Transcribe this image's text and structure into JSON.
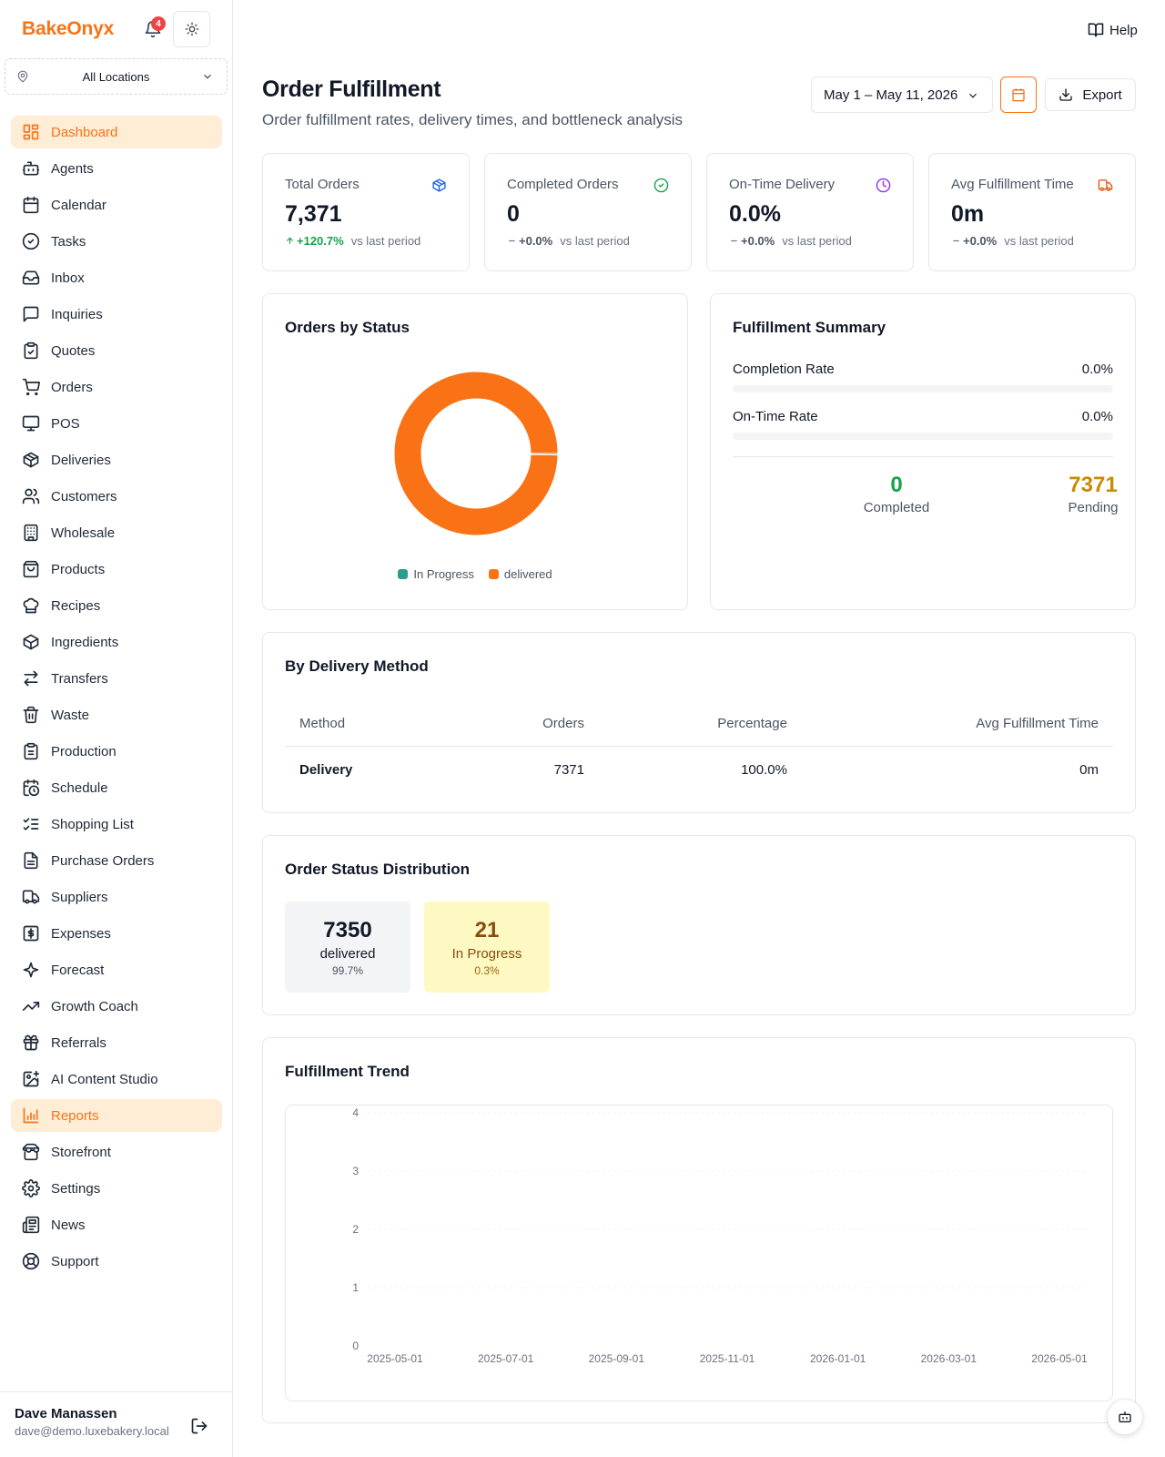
{
  "app": {
    "brand": "BakeOnyx",
    "notification_count": "4",
    "location": "All Locations",
    "help": "Help"
  },
  "sidebar": {
    "items": [
      {
        "label": "Dashboard",
        "icon": "dashboard-icon",
        "active": true
      },
      {
        "label": "Agents",
        "icon": "bot-icon"
      },
      {
        "label": "Calendar",
        "icon": "calendar-icon"
      },
      {
        "label": "Tasks",
        "icon": "check-circle-icon"
      },
      {
        "label": "Inbox",
        "icon": "inbox-icon"
      },
      {
        "label": "Inquiries",
        "icon": "message-icon"
      },
      {
        "label": "Quotes",
        "icon": "clipboard-check-icon"
      },
      {
        "label": "Orders",
        "icon": "cart-icon"
      },
      {
        "label": "POS",
        "icon": "monitor-icon"
      },
      {
        "label": "Deliveries",
        "icon": "package-icon"
      },
      {
        "label": "Customers",
        "icon": "users-icon"
      },
      {
        "label": "Wholesale",
        "icon": "building-icon"
      },
      {
        "label": "Products",
        "icon": "shopping-bag-icon"
      },
      {
        "label": "Recipes",
        "icon": "chef-icon"
      },
      {
        "label": "Ingredients",
        "icon": "box-icon"
      },
      {
        "label": "Transfers",
        "icon": "arrows-icon"
      },
      {
        "label": "Waste",
        "icon": "trash-icon"
      },
      {
        "label": "Production",
        "icon": "clipboard-icon"
      },
      {
        "label": "Schedule",
        "icon": "calendar-clock-icon"
      },
      {
        "label": "Shopping List",
        "icon": "list-checks-icon"
      },
      {
        "label": "Purchase Orders",
        "icon": "file-icon"
      },
      {
        "label": "Suppliers",
        "icon": "truck-icon"
      },
      {
        "label": "Expenses",
        "icon": "dollar-icon"
      },
      {
        "label": "Forecast",
        "icon": "sparkles-icon"
      },
      {
        "label": "Growth Coach",
        "icon": "trending-up-icon"
      },
      {
        "label": "Referrals",
        "icon": "gift-icon"
      },
      {
        "label": "AI Content Studio",
        "icon": "image-plus-icon"
      },
      {
        "label": "Reports",
        "icon": "bar-chart-icon",
        "active": true
      },
      {
        "label": "Storefront",
        "icon": "store-icon"
      },
      {
        "label": "Settings",
        "icon": "gear-icon"
      },
      {
        "label": "News",
        "icon": "newspaper-icon"
      },
      {
        "label": "Support",
        "icon": "life-buoy-icon"
      }
    ]
  },
  "user": {
    "name": "Dave Manassen",
    "email": "dave@demo.luxebakery.local"
  },
  "header": {
    "title": "Order Fulfillment",
    "subtitle": "Order fulfillment rates, delivery times, and bottleneck analysis",
    "date_range": "May 1 – May 11, 2026",
    "export": "Export"
  },
  "stats": [
    {
      "label": "Total Orders",
      "value": "7,371",
      "delta": "+120.7%",
      "suffix": "vs last period",
      "icon": "package-icon",
      "icon_color": "#2563eb",
      "trend": "up"
    },
    {
      "label": "Completed Orders",
      "value": "0",
      "delta": "+0.0%",
      "suffix": "vs last period",
      "icon": "check-circle-icon",
      "icon_color": "#16a34a",
      "trend": "flat"
    },
    {
      "label": "On-Time Delivery",
      "value": "0.0%",
      "delta": "+0.0%",
      "suffix": "vs last period",
      "icon": "clock-icon",
      "icon_color": "#9333ea",
      "trend": "flat"
    },
    {
      "label": "Avg Fulfillment Time",
      "value": "0m",
      "delta": "+0.0%",
      "suffix": "vs last period",
      "icon": "truck-icon",
      "icon_color": "#ea580c",
      "trend": "flat"
    }
  ],
  "orders_by_status": {
    "title": "Orders by Status",
    "legend": [
      {
        "label": "In Progress",
        "color": "#2a9d8f"
      },
      {
        "label": "delivered",
        "color": "#f97316"
      }
    ]
  },
  "fulfillment_summary": {
    "title": "Fulfillment Summary",
    "completion_label": "Completion Rate",
    "completion_value": "0.0%",
    "completion_fraction": 0,
    "ontime_label": "On-Time Rate",
    "ontime_value": "0.0%",
    "ontime_fraction": 0,
    "completed_num": "0",
    "completed_label": "Completed",
    "pending_num": "7371",
    "pending_label": "Pending"
  },
  "delivery_method": {
    "title": "By Delivery Method",
    "columns": [
      "Method",
      "Orders",
      "Percentage",
      "Avg Fulfillment Time"
    ],
    "rows": [
      {
        "method": "Delivery",
        "orders": "7371",
        "percentage": "100.0%",
        "avg_time": "0m"
      }
    ]
  },
  "status_distribution": {
    "title": "Order Status Distribution",
    "items": [
      {
        "count": "7350",
        "label": "delivered",
        "pct": "99.7%",
        "bg": "#f3f4f6",
        "color": "#111827",
        "sub_color": "#4b5563"
      },
      {
        "count": "21",
        "label": "In Progress",
        "pct": "0.3%",
        "bg": "#fef9c3",
        "color": "#854d0e",
        "sub_color": "#a16207"
      }
    ]
  },
  "trend": {
    "title": "Fulfillment Trend"
  },
  "chart_data": [
    {
      "type": "pie",
      "title": "Orders by Status",
      "categories": [
        "In Progress",
        "delivered"
      ],
      "values": [
        21,
        7350
      ],
      "colors": [
        "#2a9d8f",
        "#f97316"
      ]
    },
    {
      "type": "line",
      "title": "Fulfillment Trend",
      "x": [
        "2025-05-01",
        "2025-07-01",
        "2025-09-01",
        "2025-11-01",
        "2026-01-01",
        "2026-03-01",
        "2026-05-01"
      ],
      "y_ticks": [
        0,
        1,
        2,
        3,
        4
      ],
      "ylim": [
        0,
        4
      ],
      "series": [],
      "grid": true
    }
  ]
}
